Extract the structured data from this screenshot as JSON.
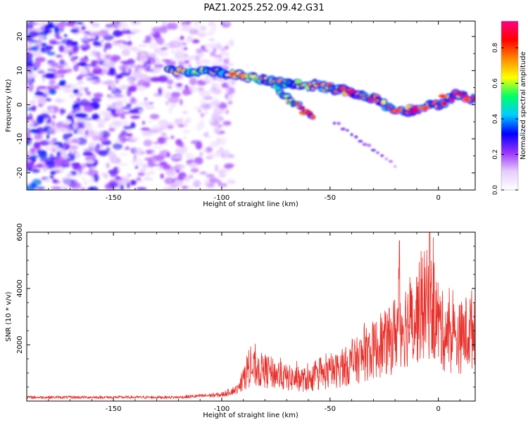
{
  "title": "PAZ1.2025.252.09.42.G31",
  "chart_data": [
    {
      "type": "heatmap",
      "name": "spectrogram",
      "xlabel": "Height of straight line (km)",
      "ylabel": "Frequency (Hz)",
      "xlim": [
        -190,
        17
      ],
      "ylim": [
        -25,
        24.5
      ],
      "xticks": [
        -150,
        -100,
        -50,
        0
      ],
      "yticks": [
        -20,
        -10,
        0,
        10,
        20
      ],
      "colorbar": {
        "label": "Normalized spectral amplitude",
        "range": [
          0,
          0.95
        ],
        "ticks": [
          "0.0",
          "0.2",
          "0.4",
          "0.6",
          "0.8"
        ],
        "tick_values": [
          0,
          0.2,
          0.4,
          0.6,
          0.8
        ],
        "colors": [
          "#ffffff",
          "#e6ccff",
          "#9933ff",
          "#0000ff",
          "#00ccff",
          "#00ff66",
          "#ffff00",
          "#ff8800",
          "#ff0000",
          "#ff0080"
        ]
      },
      "ridge": [
        {
          "h": -125,
          "f": 10
        },
        {
          "h": -110,
          "f": 10
        },
        {
          "h": -95,
          "f": 9
        },
        {
          "h": -80,
          "f": 7
        },
        {
          "h": -65,
          "f": 6
        },
        {
          "h": -50,
          "f": 5
        },
        {
          "h": -40,
          "f": 3.5
        },
        {
          "h": -30,
          "f": 2
        },
        {
          "h": -20,
          "f": -2
        },
        {
          "h": -10,
          "f": -1.5
        },
        {
          "h": 0,
          "f": 0
        },
        {
          "h": 8,
          "f": 3
        },
        {
          "h": 17,
          "f": 1.5
        }
      ],
      "branch": [
        {
          "h": -75,
          "f": 5
        },
        {
          "h": -65,
          "f": 0
        },
        {
          "h": -58,
          "f": -4
        }
      ]
    },
    {
      "type": "line",
      "name": "snr",
      "xlabel": "Height of straight line (km)",
      "ylabel": "SNR (10 * v/v)",
      "xlim": [
        -190,
        17
      ],
      "ylim": [
        0,
        6000
      ],
      "xticks": [
        -150,
        -100,
        -50,
        0
      ],
      "yticks": [
        2000,
        4000,
        6000
      ],
      "color": "#e8302a",
      "envelope": [
        {
          "h": -190,
          "v": 150
        },
        {
          "h": -120,
          "v": 150
        },
        {
          "h": -100,
          "v": 250
        },
        {
          "h": -92,
          "v": 500
        },
        {
          "h": -88,
          "v": 1400
        },
        {
          "h": -80,
          "v": 1300
        },
        {
          "h": -70,
          "v": 1000
        },
        {
          "h": -60,
          "v": 900
        },
        {
          "h": -50,
          "v": 1200
        },
        {
          "h": -40,
          "v": 1600
        },
        {
          "h": -30,
          "v": 2200
        },
        {
          "h": -22,
          "v": 2600
        },
        {
          "h": -18,
          "v": 3300
        },
        {
          "h": -12,
          "v": 3400
        },
        {
          "h": -6,
          "v": 4200
        },
        {
          "h": -3,
          "v": 4000
        },
        {
          "h": 2,
          "v": 3000
        },
        {
          "h": 8,
          "v": 2600
        },
        {
          "h": 17,
          "v": 3200
        }
      ],
      "peaks": [
        {
          "h": -18,
          "v": 5700
        },
        {
          "h": -4,
          "v": 6000
        },
        {
          "h": -10,
          "v": 4400
        }
      ]
    }
  ]
}
